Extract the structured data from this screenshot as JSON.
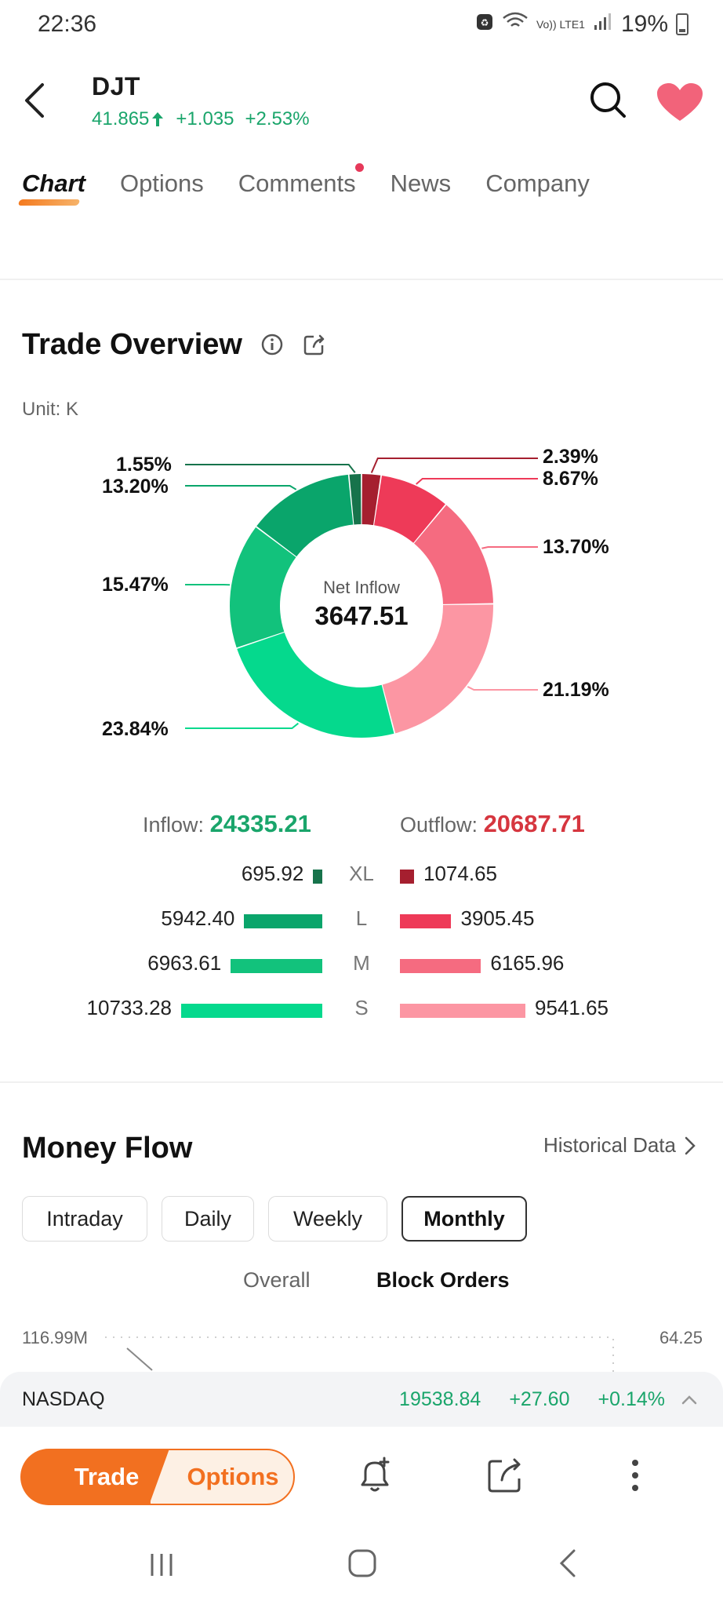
{
  "status_bar": {
    "time": "22:36",
    "network": "Vo)) LTE1",
    "battery": "19%"
  },
  "header": {
    "ticker": "DJT",
    "price": "41.865",
    "change": "+1.035",
    "change_pct": "+2.53%",
    "icons": [
      "back-icon",
      "search-icon",
      "heart-icon"
    ],
    "accent_green": "#1aa56b",
    "heart_color": "#f2637a"
  },
  "tabs": [
    {
      "label": "Chart",
      "active": true
    },
    {
      "label": "Options"
    },
    {
      "label": "Comments",
      "has_dot": true
    },
    {
      "label": "News"
    },
    {
      "label": "Company"
    }
  ],
  "trade_overview": {
    "title": "Trade Overview",
    "unit": "Unit: K",
    "center_label": "Net Inflow",
    "center_value": "3647.51",
    "inflow_label": "Inflow:",
    "inflow_value": "24335.21",
    "outflow_label": "Outflow:",
    "outflow_value": "20687.71",
    "rows": [
      {
        "size": "XL",
        "inflow": "695.92",
        "outflow": "1074.65"
      },
      {
        "size": "L",
        "inflow": "5942.40",
        "outflow": "3905.45"
      },
      {
        "size": "M",
        "inflow": "6963.61",
        "outflow": "6165.96"
      },
      {
        "size": "S",
        "inflow": "10733.28",
        "outflow": "9541.65"
      }
    ]
  },
  "chart_data": {
    "type": "pie",
    "donut": true,
    "slices": [
      {
        "label": "XL Outflow",
        "pct": 2.39,
        "display": "2.39%",
        "color": "#a51f2f"
      },
      {
        "label": "L Outflow",
        "pct": 8.67,
        "display": "8.67%",
        "color": "#ee3a58"
      },
      {
        "label": "M Outflow",
        "pct": 13.7,
        "display": "13.70%",
        "color": "#f56b80"
      },
      {
        "label": "S Outflow",
        "pct": 21.19,
        "display": "21.19%",
        "color": "#fc96a3"
      },
      {
        "label": "S Inflow",
        "pct": 23.84,
        "display": "23.84%",
        "color": "#05d98d"
      },
      {
        "label": "M Inflow",
        "pct": 15.47,
        "display": "15.47%",
        "color": "#12c27c"
      },
      {
        "label": "L Inflow",
        "pct": 13.2,
        "display": "13.20%",
        "color": "#0aa56b"
      },
      {
        "label": "XL Inflow",
        "pct": 1.55,
        "display": "1.55%",
        "color": "#17734b"
      }
    ],
    "bars": {
      "inflow": [
        695.92,
        5942.4,
        6963.61,
        10733.28
      ],
      "outflow": [
        1074.65,
        3905.45,
        6165.96,
        9541.65
      ],
      "categories": [
        "XL",
        "L",
        "M",
        "S"
      ]
    }
  },
  "money_flow": {
    "title": "Money Flow",
    "historical": "Historical Data",
    "periods": [
      "Intraday",
      "Daily",
      "Weekly",
      "Monthly"
    ],
    "active_period": "Monthly",
    "subtabs": [
      "Overall",
      "Block Orders"
    ],
    "active_subtab": "Block Orders",
    "axis_left": "116.99M",
    "axis_right": "64.25"
  },
  "index_bar": {
    "name": "NASDAQ",
    "value": "19538.84",
    "change": "+27.60",
    "change_pct": "+0.14%"
  },
  "actions": {
    "trade": "Trade",
    "options": "Options",
    "icons": [
      "alert-add-icon",
      "share-icon",
      "more-icon"
    ]
  },
  "nav": {
    "icons": [
      "recent-apps-icon",
      "home-icon",
      "back-nav-icon"
    ]
  }
}
